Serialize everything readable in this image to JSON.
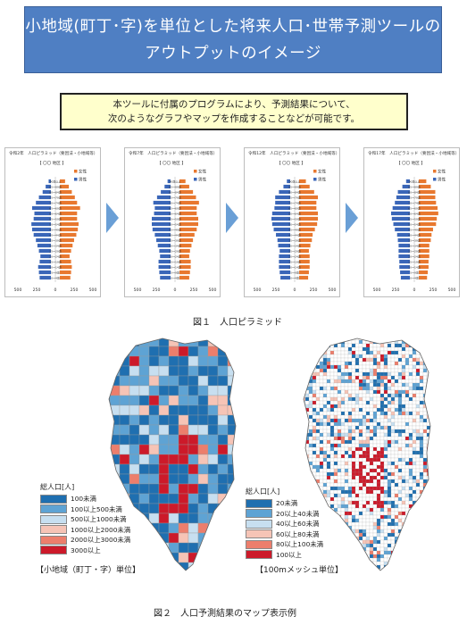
{
  "title": {
    "line1": "小地域(町丁･字)を単位とした将来人口･世帯予測ツールの",
    "line2": "アウトプットのイメージ"
  },
  "note": {
    "line1": "本ツールに付属のプログラムにより、予測結果について、",
    "line2": "次のようなグラフやマップを作成することなどが可能です。"
  },
  "pyramids": {
    "panels": [
      {
        "title": "令和2年　人口ピラミッド（要因法・小地域等）",
        "area": "【 〇〇 地区 】"
      },
      {
        "title": "令和7年　人口ピラミッド（要因法・小地域等）",
        "area": "【 〇〇 地区 】"
      },
      {
        "title": "令和12年　人口ピラミッド（要因法・小地域等）",
        "area": "【 〇〇 地区 】"
      },
      {
        "title": "令和17年　人口ピラミッド（要因法・小地域等）",
        "area": "【 〇〇 地区 】"
      }
    ],
    "legend_female": "女性",
    "legend_male": "男性",
    "axis_ticks": [
      "500",
      "250",
      "0",
      "250",
      "500"
    ],
    "colors": {
      "female": "#e8782f",
      "male": "#3a66b8"
    }
  },
  "chart_data": [
    {
      "type": "bar",
      "title": "令和2年　人口ピラミッド（要因法・小地域等）",
      "categories": [
        "0～4歳",
        "5～9歳",
        "10～14歳",
        "15～19歳",
        "20～24歳",
        "25～29歳",
        "30～34歳",
        "35～39歳",
        "40～44歳",
        "45～49歳",
        "50～54歳",
        "55～59歳",
        "60～64歳",
        "65～69歳",
        "70～74歳",
        "75～79歳",
        "80～84歳",
        "85～89歳",
        "90歳以上"
      ],
      "series": [
        {
          "name": "男性",
          "values": [
            150,
            160,
            170,
            150,
            140,
            160,
            180,
            200,
            230,
            250,
            260,
            230,
            220,
            250,
            200,
            160,
            110,
            70,
            30
          ]
        },
        {
          "name": "女性",
          "values": [
            140,
            150,
            160,
            150,
            130,
            150,
            170,
            190,
            220,
            240,
            250,
            230,
            230,
            270,
            230,
            200,
            160,
            120,
            70
          ]
        }
      ],
      "xlim": [
        -500,
        500
      ]
    },
    {
      "type": "bar",
      "title": "令和7年　人口ピラミッド（要因法・小地域等）",
      "categories": [
        "0～4歳",
        "5～9歳",
        "10～14歳",
        "15～19歳",
        "20～24歳",
        "25～29歳",
        "30～34歳",
        "35～39歳",
        "40～44歳",
        "45～49歳",
        "50～54歳",
        "55～59歳",
        "60～64歳",
        "65～69歳",
        "70～74歳",
        "75～79歳",
        "80～84歳",
        "85～89歳",
        "90歳以上"
      ],
      "series": [
        {
          "name": "男性",
          "values": [
            140,
            150,
            160,
            160,
            140,
            150,
            170,
            190,
            210,
            240,
            250,
            250,
            220,
            210,
            230,
            180,
            130,
            80,
            40
          ]
        },
        {
          "name": "女性",
          "values": [
            130,
            140,
            150,
            150,
            130,
            140,
            160,
            180,
            200,
            230,
            250,
            250,
            230,
            230,
            260,
            220,
            180,
            130,
            80
          ]
        }
      ],
      "xlim": [
        -500,
        500
      ]
    },
    {
      "type": "bar",
      "title": "令和12年　人口ピラミッド（要因法・小地域等）",
      "categories": [
        "0～4歳",
        "5～9歳",
        "10～14歳",
        "15～19歳",
        "20～24歳",
        "25～29歳",
        "30～34歳",
        "35～39歳",
        "40～44歳",
        "45～49歳",
        "50～54歳",
        "55～59歳",
        "60～64歳",
        "65～69歳",
        "70～74歳",
        "75～79歳",
        "80～84歳",
        "85～89歳",
        "90歳以上"
      ],
      "series": [
        {
          "name": "男性",
          "values": [
            130,
            140,
            150,
            150,
            150,
            140,
            160,
            170,
            190,
            220,
            240,
            250,
            240,
            210,
            200,
            200,
            150,
            90,
            45
          ]
        },
        {
          "name": "女性",
          "values": [
            120,
            130,
            140,
            140,
            140,
            130,
            150,
            170,
            180,
            210,
            240,
            250,
            250,
            230,
            230,
            250,
            200,
            140,
            90
          ]
        }
      ],
      "xlim": [
        -500,
        500
      ]
    },
    {
      "type": "bar",
      "title": "令和17年　人口ピラミッド（要因法・小地域等）",
      "categories": [
        "0～4歳",
        "5～9歳",
        "10～14歳",
        "15～19歳",
        "20～24歳",
        "25～29歳",
        "30～34歳",
        "35～39歳",
        "40～44歳",
        "45～49歳",
        "50～54歳",
        "55～59歳",
        "60～64歳",
        "65～69歳",
        "70～74歳",
        "75～79歳",
        "80～84歳",
        "85～89歳",
        "90歳以上"
      ],
      "series": [
        {
          "name": "男性",
          "values": [
            120,
            130,
            140,
            140,
            150,
            150,
            150,
            160,
            170,
            200,
            220,
            240,
            250,
            230,
            200,
            180,
            160,
            100,
            50
          ]
        },
        {
          "name": "女性",
          "values": [
            110,
            120,
            130,
            130,
            140,
            140,
            140,
            160,
            170,
            190,
            230,
            240,
            260,
            250,
            230,
            220,
            220,
            160,
            100
          ]
        }
      ],
      "xlim": [
        -500,
        500
      ]
    }
  ],
  "figure1_caption": "図１　人口ピラミッド",
  "maps": {
    "left": {
      "legend_title": "総人口[人]",
      "legend": [
        {
          "label": "100未満",
          "color": "#1f6fb0"
        },
        {
          "label": "100以上500未満",
          "color": "#5ea3d4"
        },
        {
          "label": "500以上1000未満",
          "color": "#c7dff0"
        },
        {
          "label": "1000以上2000未満",
          "color": "#f6c4b6"
        },
        {
          "label": "2000以上3000未満",
          "color": "#ec7e6c"
        },
        {
          "label": "3000以上",
          "color": "#cc1a2a"
        }
      ],
      "unit_label": "【小地域（町丁・字）単位】"
    },
    "right": {
      "legend_title": "総人口[人]",
      "legend": [
        {
          "label": "20未満",
          "color": "#1f6fb0"
        },
        {
          "label": "20以上40未満",
          "color": "#5ea3d4"
        },
        {
          "label": "40以上60未満",
          "color": "#c7dff0"
        },
        {
          "label": "60以上80未満",
          "color": "#f6c4b6"
        },
        {
          "label": "80以上100未満",
          "color": "#ec7e6c"
        },
        {
          "label": "100以上",
          "color": "#cc1a2a"
        }
      ],
      "unit_label": "【100mメッシュ単位】"
    }
  },
  "figure2_caption": "図２　人口予測結果のマップ表示例"
}
